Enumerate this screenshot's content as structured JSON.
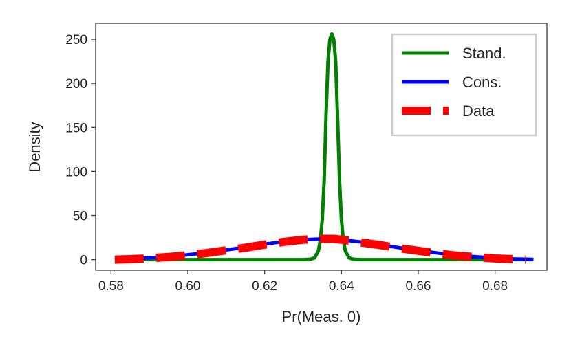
{
  "chart_data": {
    "type": "line",
    "xlabel": "Pr(Meas. 0)",
    "ylabel": "Density",
    "xlim": [
      0.576,
      0.6935
    ],
    "ylim": [
      -12,
      268
    ],
    "xticks": [
      0.58,
      0.6,
      0.62,
      0.64,
      0.66,
      0.68
    ],
    "xtick_labels": [
      "0.58",
      "0.60",
      "0.62",
      "0.64",
      "0.66",
      "0.68"
    ],
    "yticks": [
      0,
      50,
      100,
      150,
      200,
      250
    ],
    "ytick_labels": [
      "0",
      "50",
      "100",
      "150",
      "200",
      "250"
    ],
    "grid": false,
    "legend_position": "top-right",
    "series": [
      {
        "name": "Stand.",
        "color": "#008000",
        "style": "solid",
        "x": [
          0.581,
          0.6,
          0.62,
          0.63,
          0.632,
          0.633,
          0.634,
          0.6345,
          0.635,
          0.6355,
          0.636,
          0.6365,
          0.637,
          0.6375,
          0.638,
          0.6385,
          0.639,
          0.6395,
          0.64,
          0.6405,
          0.641,
          0.642,
          0.643,
          0.645,
          0.66,
          0.69
        ],
        "values": [
          0,
          0,
          0,
          0,
          0.5,
          2,
          10,
          22,
          45,
          90,
          165,
          225,
          250,
          256,
          250,
          225,
          160,
          90,
          45,
          22,
          10,
          2,
          0.5,
          0,
          0,
          0
        ]
      },
      {
        "name": "Cons.",
        "color": "#0000ff",
        "style": "solid",
        "x": [
          0.581,
          0.585,
          0.59,
          0.595,
          0.6,
          0.605,
          0.61,
          0.615,
          0.62,
          0.625,
          0.63,
          0.635,
          0.638,
          0.64,
          0.645,
          0.65,
          0.655,
          0.66,
          0.665,
          0.67,
          0.675,
          0.68,
          0.685,
          0.69
        ],
        "values": [
          0.5,
          1,
          2,
          3.5,
          5.5,
          8,
          11,
          14,
          17.5,
          20.5,
          22.5,
          23.5,
          23.5,
          22.5,
          20,
          17,
          13.5,
          10.5,
          7.5,
          5,
          3.2,
          1.8,
          0.8,
          0.3
        ]
      },
      {
        "name": "Data",
        "color": "#ff0000",
        "style": "dashed",
        "x": [
          0.581,
          0.585,
          0.59,
          0.595,
          0.6,
          0.605,
          0.61,
          0.615,
          0.62,
          0.625,
          0.63,
          0.635,
          0.638,
          0.64,
          0.645,
          0.65,
          0.655,
          0.66,
          0.665,
          0.67,
          0.675,
          0.68,
          0.685,
          0.688
        ],
        "values": [
          0,
          0.5,
          1.5,
          3,
          5,
          7.5,
          10.5,
          13.5,
          17,
          20,
          22.5,
          23.5,
          23.5,
          22.5,
          19.5,
          16.5,
          13,
          10,
          7,
          4.5,
          2.8,
          1.3,
          0.4,
          0.1
        ]
      }
    ]
  }
}
